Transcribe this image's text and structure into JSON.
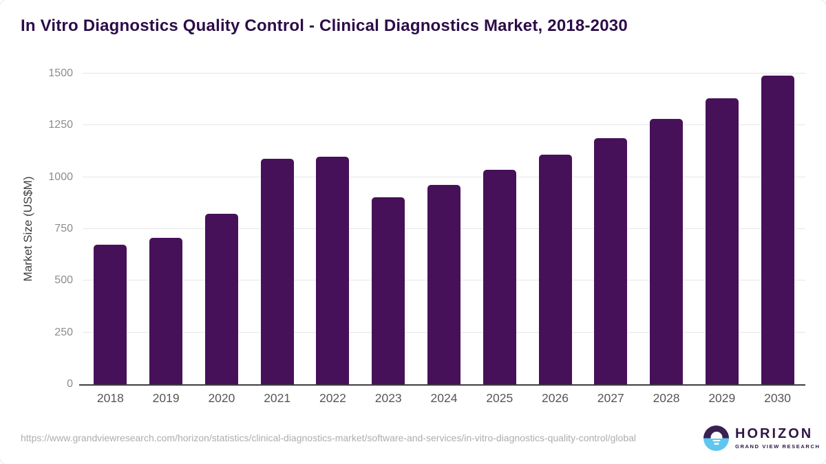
{
  "chart_data": {
    "type": "bar",
    "title": "In Vitro Diagnostics Quality Control - Clinical Diagnostics Market, 2018-2030",
    "categories": [
      "2018",
      "2019",
      "2020",
      "2021",
      "2022",
      "2023",
      "2024",
      "2025",
      "2026",
      "2027",
      "2028",
      "2029",
      "2030"
    ],
    "values": [
      675,
      708,
      824,
      1087,
      1097,
      904,
      963,
      1035,
      1107,
      1187,
      1280,
      1380,
      1490
    ],
    "xlabel": "",
    "ylabel": "Market Size (US$M)",
    "ylim": [
      0,
      1500
    ],
    "yticks": [
      0,
      250,
      500,
      750,
      1000,
      1250,
      1500
    ],
    "grid": true,
    "legend": "none"
  },
  "footer": {
    "source_url": "https://www.grandviewresearch.com/horizon/statistics/clinical-diagnostics-market/software-and-services/in-vitro-diagnostics-quality-control/global",
    "logo": {
      "name": "HORIZON",
      "subtitle": "GRAND VIEW RESEARCH"
    }
  },
  "colors": {
    "bar": "#471159",
    "title": "#2c0c48",
    "axis": "#3d3d3d",
    "gridline": "#e7e7e7",
    "tick_label": "#8c8c8c",
    "x_label": "#565656",
    "url_text": "#adadad",
    "logo_purple": "#2e1745",
    "logo_purple_dark": "#3a2150",
    "logo_blue": "#5fc6ef"
  }
}
